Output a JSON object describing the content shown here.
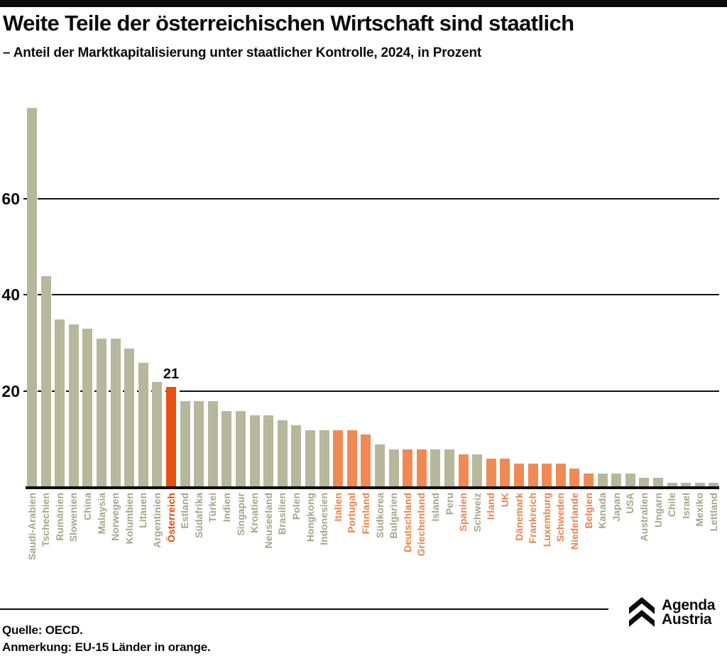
{
  "header": {
    "title": "Weite Teile der österreichischen Wirtschaft sind staatlich",
    "subtitle": "– Anteil der Marktkapitalisierung unter staatlicher Kontrolle, 2024, in Prozent"
  },
  "chart_data": {
    "type": "bar",
    "title": "Anteil der Marktkapitalisierung unter staatlicher Kontrolle, 2024, in Prozent",
    "ylabel": "Prozent",
    "ylim": [
      0,
      80
    ],
    "yticks": [
      20,
      40,
      60
    ],
    "grid": "horizontal",
    "legend": "none",
    "annotation": {
      "country": "Österreich",
      "label": "21"
    },
    "colors": {
      "base_bar": "#b7b79c",
      "eu15_bar": "#f08a55",
      "austria_bar": "#e8500f",
      "base_label": "#a6a68b",
      "eu15_label": "#e8854f",
      "austria_label": "#e0490c",
      "ink": "#0c0c0c"
    },
    "series": [
      {
        "name": "Saudi-Arabien",
        "value": 79,
        "group": "base"
      },
      {
        "name": "Tschechien",
        "value": 44,
        "group": "base"
      },
      {
        "name": "Rumänien",
        "value": 35,
        "group": "base"
      },
      {
        "name": "Slowenien",
        "value": 34,
        "group": "base"
      },
      {
        "name": "China",
        "value": 33,
        "group": "base"
      },
      {
        "name": "Malaysia",
        "value": 31,
        "group": "base"
      },
      {
        "name": "Norwegen",
        "value": 31,
        "group": "base"
      },
      {
        "name": "Kolumbien",
        "value": 29,
        "group": "base"
      },
      {
        "name": "Litauen",
        "value": 26,
        "group": "base"
      },
      {
        "name": "Argentinien",
        "value": 22,
        "group": "base"
      },
      {
        "name": "Österreich",
        "value": 21,
        "group": "austria"
      },
      {
        "name": "Estland",
        "value": 18,
        "group": "base"
      },
      {
        "name": "Südafrika",
        "value": 18,
        "group": "base"
      },
      {
        "name": "Türkei",
        "value": 18,
        "group": "base"
      },
      {
        "name": "Indien",
        "value": 16,
        "group": "base"
      },
      {
        "name": "Singapur",
        "value": 16,
        "group": "base"
      },
      {
        "name": "Kroatien",
        "value": 15,
        "group": "base"
      },
      {
        "name": "Neuseeland",
        "value": 15,
        "group": "base"
      },
      {
        "name": "Brasilien",
        "value": 14,
        "group": "base"
      },
      {
        "name": "Polen",
        "value": 13,
        "group": "base"
      },
      {
        "name": "Hongkong",
        "value": 12,
        "group": "base"
      },
      {
        "name": "Indonesien",
        "value": 12,
        "group": "base"
      },
      {
        "name": "Italien",
        "value": 12,
        "group": "eu15"
      },
      {
        "name": "Portugal",
        "value": 12,
        "group": "eu15"
      },
      {
        "name": "Finnland",
        "value": 11,
        "group": "eu15"
      },
      {
        "name": "Südkorea",
        "value": 9,
        "group": "base"
      },
      {
        "name": "Bulgarien",
        "value": 8,
        "group": "base"
      },
      {
        "name": "Deutschland",
        "value": 8,
        "group": "eu15"
      },
      {
        "name": "Griechenland",
        "value": 8,
        "group": "eu15"
      },
      {
        "name": "Island",
        "value": 8,
        "group": "base"
      },
      {
        "name": "Peru",
        "value": 8,
        "group": "base"
      },
      {
        "name": "Spanien",
        "value": 7,
        "group": "eu15"
      },
      {
        "name": "Schweiz",
        "value": 7,
        "group": "base"
      },
      {
        "name": "Irland",
        "value": 6,
        "group": "eu15"
      },
      {
        "name": "UK",
        "value": 6,
        "group": "eu15"
      },
      {
        "name": "Dänemark",
        "value": 5,
        "group": "eu15"
      },
      {
        "name": "Frankreich",
        "value": 5,
        "group": "eu15"
      },
      {
        "name": "Luxemburg",
        "value": 5,
        "group": "eu15"
      },
      {
        "name": "Schweden",
        "value": 5,
        "group": "eu15"
      },
      {
        "name": "Niederlande",
        "value": 4,
        "group": "eu15"
      },
      {
        "name": "Belgien",
        "value": 3,
        "group": "eu15"
      },
      {
        "name": "Kanada",
        "value": 3,
        "group": "base"
      },
      {
        "name": "Japan",
        "value": 3,
        "group": "base"
      },
      {
        "name": "USA",
        "value": 3,
        "group": "base"
      },
      {
        "name": "Australien",
        "value": 2,
        "group": "base"
      },
      {
        "name": "Ungarn",
        "value": 2,
        "group": "base"
      },
      {
        "name": "Chile",
        "value": 1,
        "group": "base"
      },
      {
        "name": "Israel",
        "value": 1,
        "group": "base"
      },
      {
        "name": "Mexiko",
        "value": 1,
        "group": "base"
      },
      {
        "name": "Lettland",
        "value": 1,
        "group": "base"
      }
    ]
  },
  "footer": {
    "source": "Quelle: OECD.",
    "note": "Anmerkung: EU-15 Länder in orange.",
    "logo": {
      "line1": "Agenda",
      "line2": "Austria",
      "icon": "double-chevron-up-icon"
    }
  }
}
